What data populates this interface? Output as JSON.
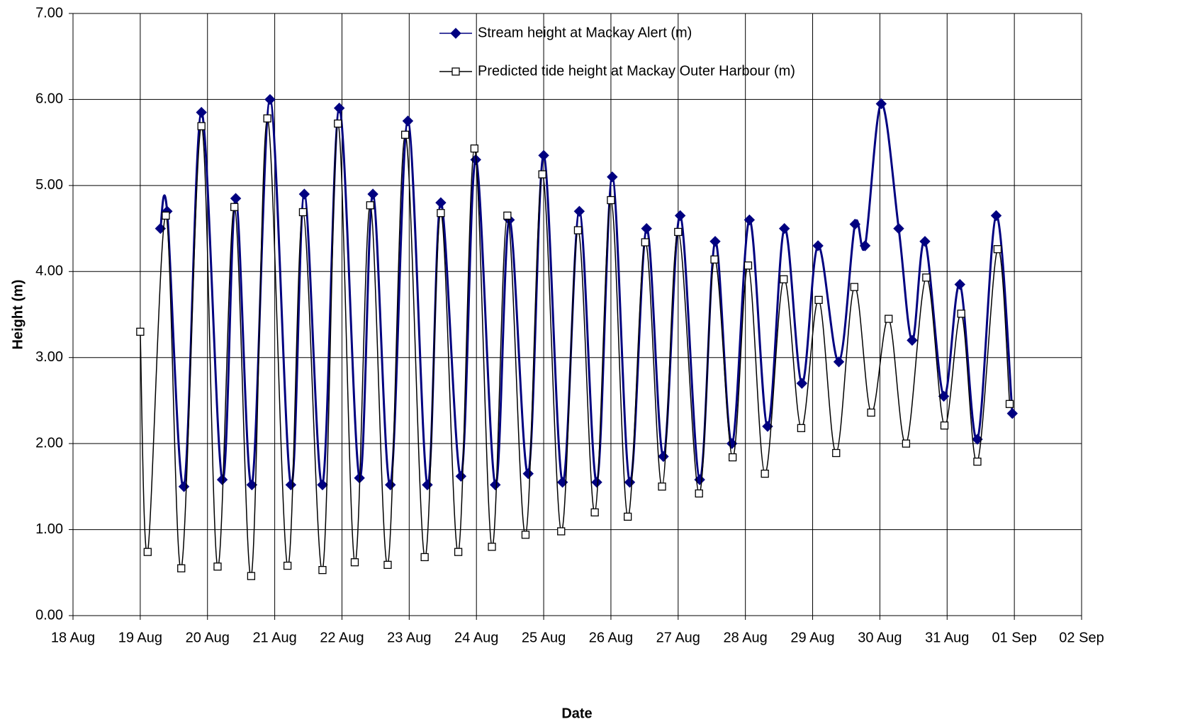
{
  "chart_data": {
    "type": "line",
    "x_label": "Date",
    "y_label": "Height (m)",
    "xlim": [
      18,
      33
    ],
    "xticks": [
      {
        "value": 18,
        "label": "18 Aug"
      },
      {
        "value": 19,
        "label": "19 Aug"
      },
      {
        "value": 20,
        "label": "20 Aug"
      },
      {
        "value": 21,
        "label": "21 Aug"
      },
      {
        "value": 22,
        "label": "22 Aug"
      },
      {
        "value": 23,
        "label": "23 Aug"
      },
      {
        "value": 24,
        "label": "24 Aug"
      },
      {
        "value": 25,
        "label": "25 Aug"
      },
      {
        "value": 26,
        "label": "26 Aug"
      },
      {
        "value": 27,
        "label": "27 Aug"
      },
      {
        "value": 28,
        "label": "28 Aug"
      },
      {
        "value": 29,
        "label": "29 Aug"
      },
      {
        "value": 30,
        "label": "30 Aug"
      },
      {
        "value": 31,
        "label": "31 Aug"
      },
      {
        "value": 32,
        "label": "01 Sep"
      },
      {
        "value": 33,
        "label": "02 Sep"
      }
    ],
    "ylim": [
      0,
      7
    ],
    "yticks": [
      {
        "value": 0,
        "label": "0.00"
      },
      {
        "value": 1,
        "label": "1.00"
      },
      {
        "value": 2,
        "label": "2.00"
      },
      {
        "value": 3,
        "label": "3.00"
      },
      {
        "value": 4,
        "label": "4.00"
      },
      {
        "value": 5,
        "label": "5.00"
      },
      {
        "value": 6,
        "label": "6.00"
      },
      {
        "value": 7,
        "label": "7.00"
      }
    ],
    "grid": true,
    "legend": "top",
    "series": [
      {
        "name": "Stream height at Mackay Alert (m)",
        "color": "#000080",
        "marker": "diamond",
        "x": [
          19.3,
          19.4,
          19.65,
          19.91,
          20.22,
          20.42,
          20.66,
          20.93,
          21.24,
          21.44,
          21.71,
          21.96,
          22.26,
          22.46,
          22.72,
          22.98,
          23.27,
          23.47,
          23.77,
          23.99,
          24.28,
          24.49,
          24.77,
          25.0,
          25.28,
          25.53,
          25.79,
          26.02,
          26.28,
          26.53,
          26.78,
          27.03,
          27.32,
          27.55,
          27.8,
          28.06,
          28.33,
          28.58,
          28.84,
          29.08,
          29.39,
          29.63,
          29.78,
          30.02,
          30.28,
          30.48,
          30.67,
          30.95,
          31.19,
          31.45,
          31.73,
          31.97
        ],
        "values": [
          4.5,
          4.7,
          1.5,
          5.85,
          1.58,
          4.85,
          1.52,
          6.0,
          1.52,
          4.9,
          1.52,
          5.9,
          1.6,
          4.9,
          1.52,
          5.75,
          1.52,
          4.8,
          1.62,
          5.3,
          1.52,
          4.6,
          1.65,
          5.35,
          1.55,
          4.7,
          1.55,
          5.1,
          1.55,
          4.5,
          1.85,
          4.65,
          1.58,
          4.35,
          2.0,
          4.6,
          2.2,
          4.5,
          2.7,
          4.3,
          2.95,
          4.55,
          4.3,
          5.95,
          4.5,
          3.2,
          4.35,
          2.55,
          3.85,
          2.05,
          4.65,
          2.35
        ]
      },
      {
        "name": "Predicted tide height at Mackay Outer Harbour (m)",
        "color": "#000000",
        "marker": "square",
        "x": [
          19.0,
          19.11,
          19.38,
          19.61,
          19.91,
          20.15,
          20.4,
          20.65,
          20.89,
          21.19,
          21.42,
          21.71,
          21.94,
          22.19,
          22.42,
          22.68,
          22.94,
          23.23,
          23.47,
          23.73,
          23.97,
          24.23,
          24.46,
          24.73,
          24.98,
          25.26,
          25.51,
          25.76,
          26.0,
          26.25,
          26.51,
          26.76,
          27.0,
          27.31,
          27.54,
          27.81,
          28.04,
          28.29,
          28.57,
          28.83,
          29.09,
          29.35,
          29.62,
          29.87,
          30.13,
          30.39,
          30.69,
          30.96,
          31.21,
          31.45,
          31.75,
          31.93
        ],
        "values": [
          3.3,
          0.74,
          4.65,
          0.55,
          5.69,
          0.57,
          4.75,
          0.46,
          5.78,
          0.58,
          4.69,
          0.53,
          5.72,
          0.62,
          4.77,
          0.59,
          5.59,
          0.68,
          4.68,
          0.74,
          5.43,
          0.8,
          4.65,
          0.94,
          5.13,
          0.98,
          4.48,
          1.2,
          4.83,
          1.15,
          4.34,
          1.5,
          4.46,
          1.42,
          4.14,
          1.84,
          4.07,
          1.65,
          3.91,
          2.18,
          3.67,
          1.89,
          3.82,
          2.36,
          3.45,
          2.0,
          3.93,
          2.21,
          3.51,
          1.79,
          4.26,
          2.46
        ]
      }
    ]
  }
}
